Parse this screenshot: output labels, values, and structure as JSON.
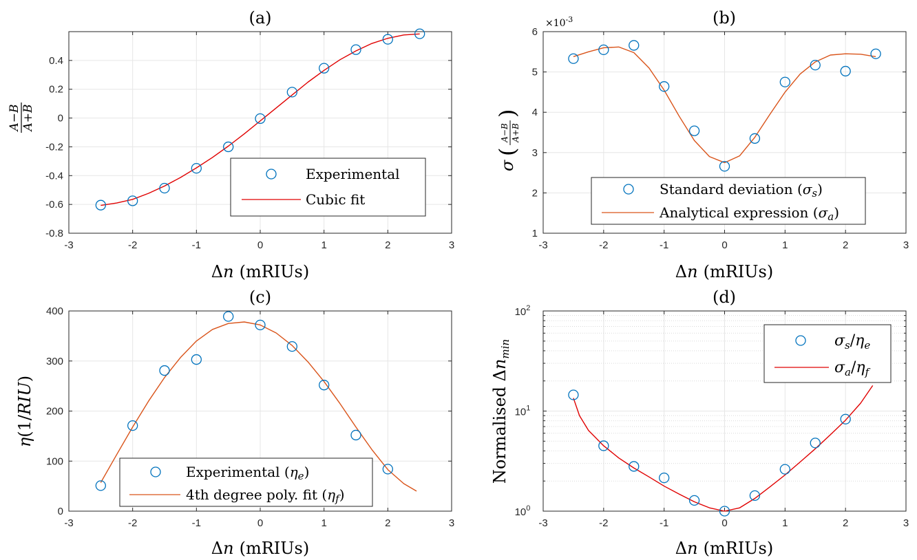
{
  "chart_data": [
    {
      "id": "a",
      "type": "scatter",
      "title": "(a)",
      "xlabel": "Δn (mRIUs)",
      "ylabel": "(A−B)/(A+B)",
      "xlim": [
        -3,
        3
      ],
      "ylim": [
        -0.8,
        0.6
      ],
      "xticks": [
        "-3",
        "-2",
        "-1",
        "0",
        "1",
        "2",
        "3"
      ],
      "yticks": [
        "-0.8",
        "-0.6",
        "-0.4",
        "-0.2",
        "0",
        "0.2",
        "0.4"
      ],
      "grid": true,
      "legend_position": "lower-right",
      "series": [
        {
          "name": "Experimental",
          "kind": "markers",
          "color": "#0072BD",
          "x": [
            -2.5,
            -2,
            -1.5,
            -1,
            -0.5,
            0,
            0.5,
            1,
            1.5,
            2,
            2.5
          ],
          "y": [
            -0.605,
            -0.575,
            -0.487,
            -0.349,
            -0.2,
            -0.004,
            0.18,
            0.346,
            0.475,
            0.547,
            0.585
          ]
        },
        {
          "name": "Cubic fit",
          "kind": "line",
          "color": "#E00000",
          "x": [
            -2.5,
            -2.25,
            -2.0,
            -1.75,
            -1.5,
            -1.25,
            -1.0,
            -0.75,
            -0.5,
            -0.25,
            0.0,
            0.25,
            0.5,
            0.75,
            1.0,
            1.25,
            1.5,
            1.75,
            2.0,
            2.25,
            2.5
          ],
          "y": [
            -0.607,
            -0.59,
            -0.565,
            -0.523,
            -0.472,
            -0.413,
            -0.346,
            -0.274,
            -0.195,
            -0.11,
            -0.02,
            0.07,
            0.16,
            0.25,
            0.331,
            0.405,
            0.466,
            0.518,
            0.554,
            0.577,
            0.584
          ]
        }
      ]
    },
    {
      "id": "b",
      "type": "scatter",
      "title": "(b)",
      "xlabel": "Δn (mRIUs)",
      "ylabel": "σ((A−B)/(A+B))",
      "y_exponent": "×10^-3",
      "xlim": [
        -3,
        3
      ],
      "ylim": [
        1,
        6
      ],
      "xticks": [
        "-3",
        "-2",
        "-1",
        "0",
        "1",
        "2",
        "3"
      ],
      "yticks": [
        "1",
        "2",
        "3",
        "4",
        "5",
        "6"
      ],
      "grid": true,
      "legend_position": "lower-center",
      "series": [
        {
          "name": "Standard deviation (σs)",
          "kind": "markers",
          "color": "#0072BD",
          "x": [
            -2.5,
            -2,
            -1.5,
            -1,
            -0.5,
            0,
            0.5,
            1,
            1.5,
            2,
            2.5
          ],
          "y": [
            5.33,
            5.55,
            5.66,
            4.64,
            3.54,
            2.66,
            3.35,
            4.75,
            5.17,
            5.02,
            5.45
          ]
        },
        {
          "name": "Analytical expression (σa)",
          "kind": "line",
          "color": "#D95319",
          "x": [
            -2.5,
            -2.25,
            -2.0,
            -1.75,
            -1.5,
            -1.25,
            -1.0,
            -0.75,
            -0.5,
            -0.25,
            0.0,
            0.25,
            0.5,
            0.75,
            1.0,
            1.25,
            1.5,
            1.75,
            2.0,
            2.25,
            2.5
          ],
          "y": [
            5.38,
            5.5,
            5.6,
            5.62,
            5.48,
            5.1,
            4.55,
            3.9,
            3.3,
            2.9,
            2.75,
            2.92,
            3.38,
            3.95,
            4.5,
            4.95,
            5.25,
            5.42,
            5.45,
            5.44,
            5.38
          ]
        }
      ]
    },
    {
      "id": "c",
      "type": "scatter",
      "title": "(c)",
      "xlabel": "Δn (mRIUs)",
      "ylabel": "η(1/RIU)",
      "xlim": [
        -3,
        3
      ],
      "ylim": [
        0,
        400
      ],
      "xticks": [
        "-3",
        "-2",
        "-1",
        "0",
        "1",
        "2",
        "3"
      ],
      "yticks": [
        "0",
        "100",
        "200",
        "300",
        "400"
      ],
      "grid": true,
      "legend_position": "lower-center",
      "series": [
        {
          "name": "Experimental (ηe)",
          "kind": "markers",
          "color": "#0072BD",
          "x": [
            -2.5,
            -2,
            -1.5,
            -1,
            -0.5,
            0,
            0.5,
            1,
            1.5,
            2
          ],
          "y": [
            51,
            171,
            281,
            303,
            389,
            372,
            329,
            252,
            152,
            84
          ]
        },
        {
          "name": "4th degree poly. fit (ηf)",
          "kind": "line",
          "color": "#D95319",
          "x": [
            -2.5,
            -2.25,
            -2.0,
            -1.75,
            -1.5,
            -1.25,
            -1.0,
            -0.75,
            -0.5,
            -0.25,
            0.0,
            0.25,
            0.5,
            0.75,
            1.0,
            1.25,
            1.5,
            1.75,
            2.0,
            2.25,
            2.45
          ],
          "y": [
            57,
            113,
            168,
            220,
            267,
            307,
            340,
            363,
            375,
            378,
            372,
            356,
            331,
            298,
            259,
            215,
            168,
            123,
            83,
            55,
            40
          ]
        }
      ]
    },
    {
      "id": "d",
      "type": "scatter",
      "title": "(d)",
      "xlabel": "Δn (mRIUs)",
      "ylabel": "Normalised Δn_min",
      "yscale": "log",
      "xlim": [
        -3,
        3
      ],
      "ylim": [
        1,
        100
      ],
      "xticks": [
        "-3",
        "-2",
        "-1",
        "0",
        "1",
        "2",
        "3"
      ],
      "yticks": [
        "10^0",
        "10^1",
        "10^2"
      ],
      "grid": true,
      "minor_grid": true,
      "legend_position": "top-right",
      "series": [
        {
          "name": "σs/ηe",
          "kind": "markers",
          "color": "#0072BD",
          "x": [
            -2.5,
            -2,
            -1.5,
            -1,
            -0.5,
            0,
            0.5,
            1,
            1.5,
            2
          ],
          "y": [
            14.5,
            4.5,
            2.8,
            2.15,
            1.28,
            1.0,
            1.43,
            2.62,
            4.8,
            8.3
          ]
        },
        {
          "name": "σa/ηf",
          "kind": "line",
          "color": "#E00000",
          "x": [
            -2.5,
            -2.4,
            -2.25,
            -2.0,
            -1.75,
            -1.5,
            -1.25,
            -1.0,
            -0.75,
            -0.5,
            -0.25,
            0.0,
            0.25,
            0.5,
            0.75,
            1.0,
            1.25,
            1.5,
            1.75,
            2.0,
            2.25,
            2.45
          ],
          "y": [
            13.5,
            9.0,
            6.4,
            4.5,
            3.4,
            2.7,
            2.2,
            1.78,
            1.48,
            1.24,
            1.08,
            1.0,
            1.08,
            1.34,
            1.75,
            2.3,
            3.1,
            4.2,
            5.8,
            8.1,
            12.0,
            18.0
          ]
        }
      ]
    }
  ],
  "legend_labels": {
    "a": [
      "Experimental",
      "Cubic fit"
    ],
    "b": [
      "Standard deviation (",
      "σ",
      "s",
      ")",
      "Analytical expression (",
      "σ",
      "a",
      ")"
    ],
    "c": [
      "Experimental (",
      "η",
      "e",
      ")",
      "4th degree poly. fit (",
      "η",
      "f",
      ")"
    ],
    "d": [
      "σ",
      "s",
      "/",
      "η",
      "e",
      "σ",
      "a",
      "/",
      "η",
      "f"
    ]
  },
  "axis_text": {
    "xlabel_delta": "Δ",
    "xlabel_n": "n",
    "xlabel_unit": "(mRIUs)",
    "ylabel_a_num": "A−B",
    "ylabel_a_den": "A+B",
    "ylabel_b_sigma": "σ",
    "ylabel_b_num": "A−B",
    "ylabel_b_den": "A+B",
    "ylabel_b_exp": "×10",
    "ylabel_b_exp_pow": "-3",
    "ylabel_c_eta": "η",
    "ylabel_c_rest": "(1/",
    "ylabel_c_riu": "RIU",
    "ylabel_c_close": ")",
    "ylabel_d_text": "Normalised Δ",
    "ylabel_d_n": "n",
    "ylabel_d_sub": "min",
    "log_base": "10",
    "log_pows": [
      "0",
      "1",
      "2"
    ]
  }
}
